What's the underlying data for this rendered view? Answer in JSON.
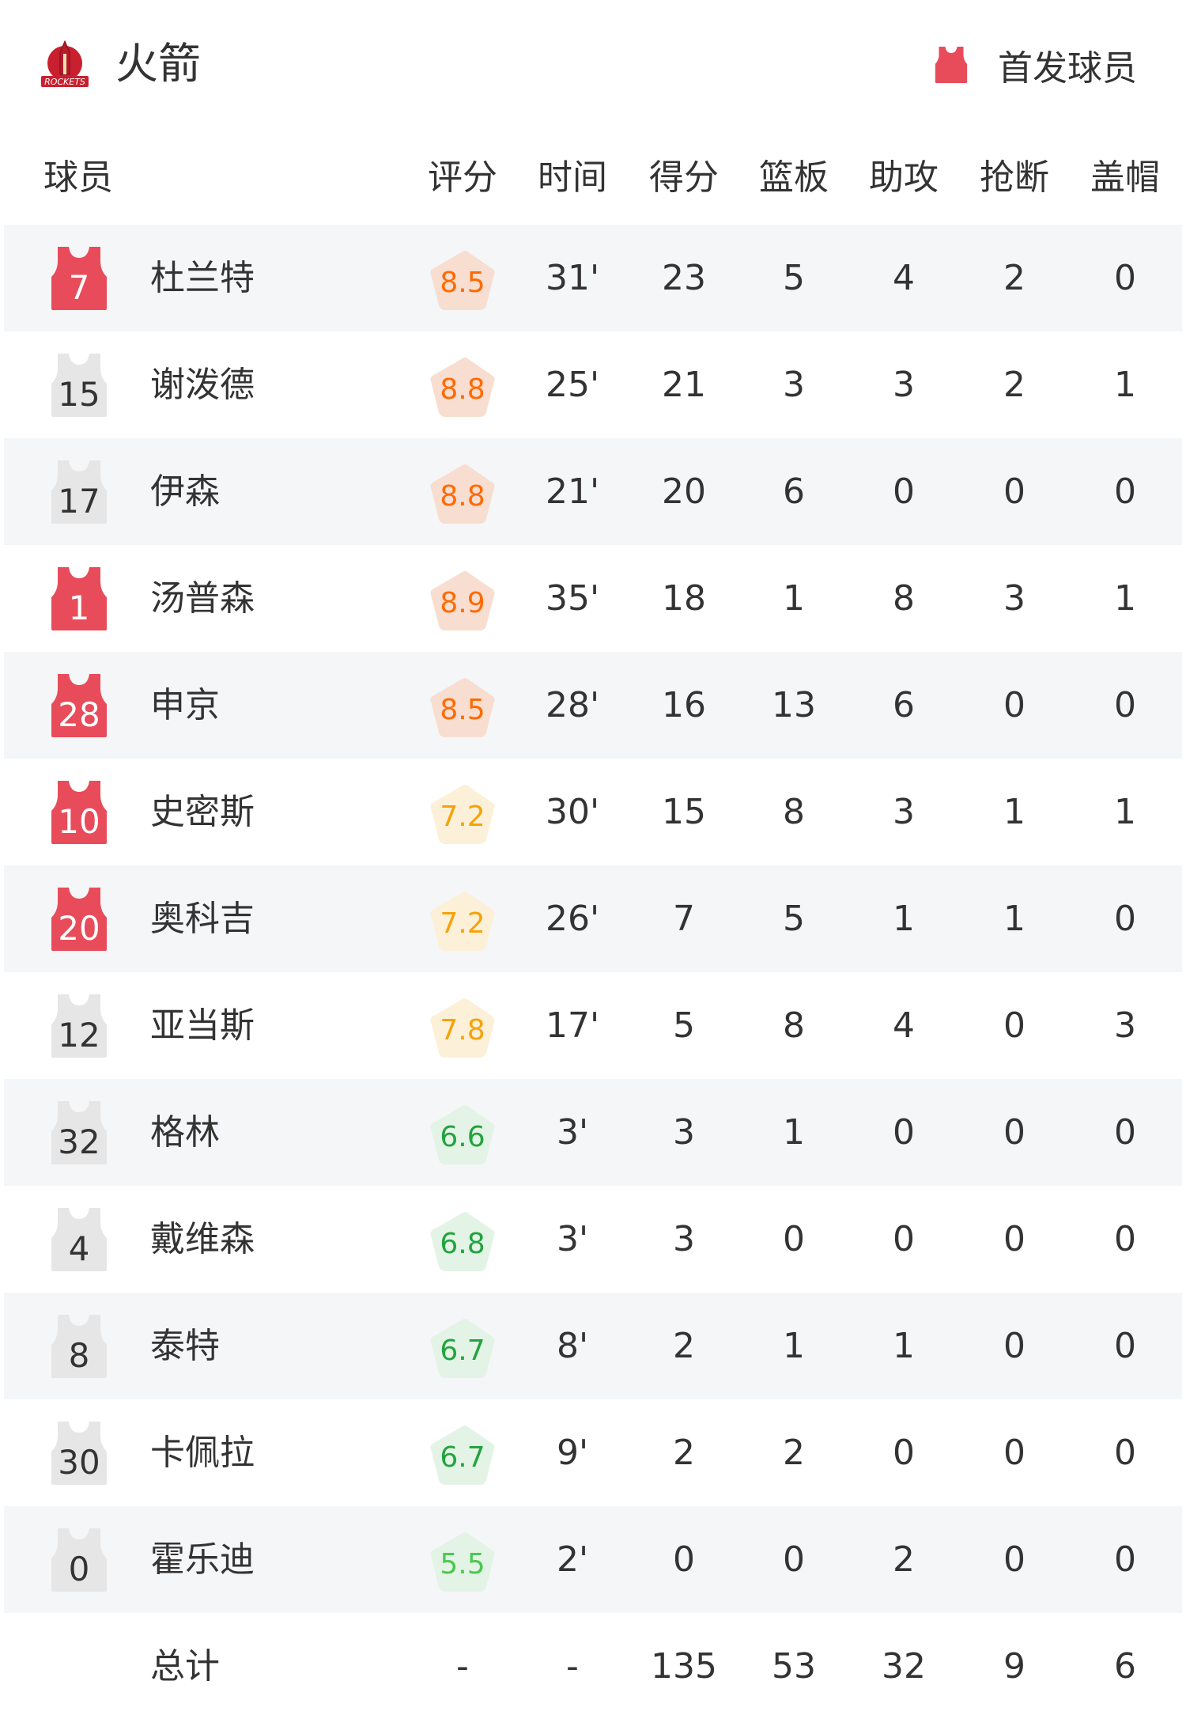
{
  "header": {
    "team_name": "火箭",
    "logo_text": "ROCKETS",
    "legend_label": "首发球员"
  },
  "columns": [
    "球员",
    "评分",
    "时间",
    "得分",
    "篮板",
    "助攻",
    "抢断",
    "盖帽"
  ],
  "colors": {
    "starter_jersey": "#e84c5a",
    "bench_jersey": "#e6e6e6",
    "row_alt_bg": "#f5f6f8",
    "rating_high_text": "#ff6a00",
    "rating_high_bg": "#f8dccd",
    "rating_mid_text": "#f5a30a",
    "rating_mid_bg": "#fcefd6",
    "rating_low_text": "#23a33f",
    "rating_low_bg": "#e2f3e5",
    "rating_lowest_text": "#4cc84f"
  },
  "players": [
    {
      "number": "7",
      "name": "杜兰特",
      "starter": true,
      "rating": "8.5",
      "tier": "high",
      "min": "31'",
      "pts": "23",
      "reb": "5",
      "ast": "4",
      "stl": "2",
      "blk": "0"
    },
    {
      "number": "15",
      "name": "谢泼德",
      "starter": false,
      "rating": "8.8",
      "tier": "high",
      "min": "25'",
      "pts": "21",
      "reb": "3",
      "ast": "3",
      "stl": "2",
      "blk": "1"
    },
    {
      "number": "17",
      "name": "伊森",
      "starter": false,
      "rating": "8.8",
      "tier": "high",
      "min": "21'",
      "pts": "20",
      "reb": "6",
      "ast": "0",
      "stl": "0",
      "blk": "0"
    },
    {
      "number": "1",
      "name": "汤普森",
      "starter": true,
      "rating": "8.9",
      "tier": "high",
      "min": "35'",
      "pts": "18",
      "reb": "1",
      "ast": "8",
      "stl": "3",
      "blk": "1"
    },
    {
      "number": "28",
      "name": "申京",
      "starter": true,
      "rating": "8.5",
      "tier": "high",
      "min": "28'",
      "pts": "16",
      "reb": "13",
      "ast": "6",
      "stl": "0",
      "blk": "0"
    },
    {
      "number": "10",
      "name": "史密斯",
      "starter": true,
      "rating": "7.2",
      "tier": "mid",
      "min": "30'",
      "pts": "15",
      "reb": "8",
      "ast": "3",
      "stl": "1",
      "blk": "1"
    },
    {
      "number": "20",
      "name": "奥科吉",
      "starter": true,
      "rating": "7.2",
      "tier": "mid",
      "min": "26'",
      "pts": "7",
      "reb": "5",
      "ast": "1",
      "stl": "1",
      "blk": "0"
    },
    {
      "number": "12",
      "name": "亚当斯",
      "starter": false,
      "rating": "7.8",
      "tier": "mid",
      "min": "17'",
      "pts": "5",
      "reb": "8",
      "ast": "4",
      "stl": "0",
      "blk": "3"
    },
    {
      "number": "32",
      "name": "格林",
      "starter": false,
      "rating": "6.6",
      "tier": "low",
      "min": "3'",
      "pts": "3",
      "reb": "1",
      "ast": "0",
      "stl": "0",
      "blk": "0"
    },
    {
      "number": "4",
      "name": "戴维森",
      "starter": false,
      "rating": "6.8",
      "tier": "low",
      "min": "3'",
      "pts": "3",
      "reb": "0",
      "ast": "0",
      "stl": "0",
      "blk": "0"
    },
    {
      "number": "8",
      "name": "泰特",
      "starter": false,
      "rating": "6.7",
      "tier": "low",
      "min": "8'",
      "pts": "2",
      "reb": "1",
      "ast": "1",
      "stl": "0",
      "blk": "0"
    },
    {
      "number": "30",
      "name": "卡佩拉",
      "starter": false,
      "rating": "6.7",
      "tier": "low",
      "min": "9'",
      "pts": "2",
      "reb": "2",
      "ast": "0",
      "stl": "0",
      "blk": "0"
    },
    {
      "number": "0",
      "name": "霍乐迪",
      "starter": false,
      "rating": "5.5",
      "tier": "lowest",
      "min": "2'",
      "pts": "0",
      "reb": "0",
      "ast": "2",
      "stl": "0",
      "blk": "0"
    }
  ],
  "totals": {
    "label": "总计",
    "rating": "-",
    "min": "-",
    "pts": "135",
    "reb": "53",
    "ast": "32",
    "stl": "9",
    "blk": "6"
  }
}
